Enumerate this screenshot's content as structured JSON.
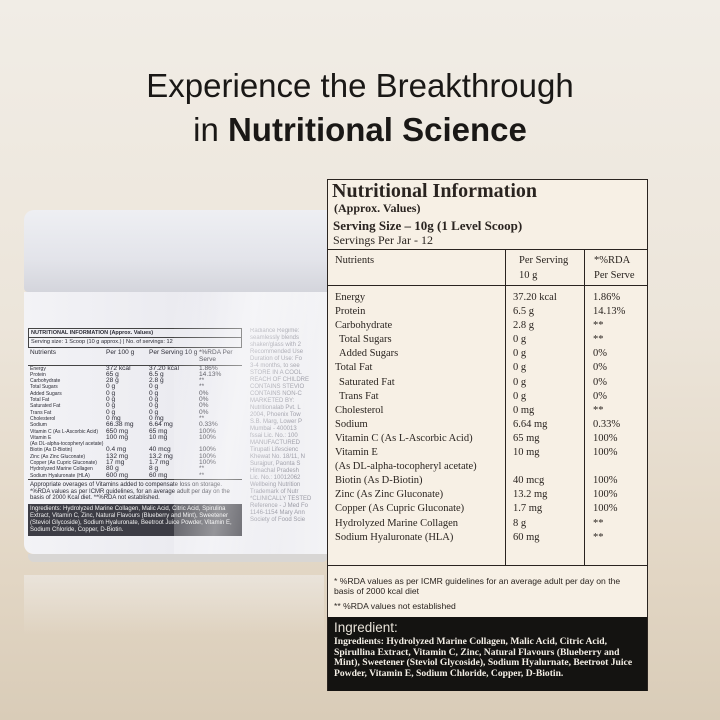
{
  "headline": {
    "line1": "Experience the Breakthrough",
    "line2_prefix": "in ",
    "line2_bold": "Nutritional Science"
  },
  "jar_label": {
    "title": "NUTRITIONAL INFORMATION (Approx. Values)",
    "subtitle": "Serving size: 1 Scoop (10 g approx.) | No. of servings: 12",
    "headers": [
      "Nutrients",
      "Per 100 g",
      "Per Serving 10 g",
      "*%RDA Per Serve"
    ],
    "rows": [
      [
        "Energy",
        "372 kcal",
        "37.20 kcal",
        "1.86%"
      ],
      [
        "Protein",
        "65 g",
        "6.5 g",
        "14.13%"
      ],
      [
        "Carbohydrate",
        "28 g",
        "2.8 g",
        "**"
      ],
      [
        "Total Sugars",
        "0 g",
        "0 g",
        "**"
      ],
      [
        "Added Sugars",
        "0 g",
        "0 g",
        "0%"
      ],
      [
        "Total Fat",
        "0 g",
        "0 g",
        "0%"
      ],
      [
        "Saturated Fat",
        "0 g",
        "0 g",
        "0%"
      ],
      [
        "Trans Fat",
        "0 g",
        "0 g",
        "0%"
      ],
      [
        "Cholesterol",
        "0 mg",
        "0 mg",
        "**"
      ],
      [
        "Sodium",
        "66.38 mg",
        "6.64 mg",
        "0.33%"
      ],
      [
        "Vitamin C (As L-Ascorbic Acid)",
        "650 mg",
        "65 mg",
        "100%"
      ],
      [
        "Vitamin E",
        "100 mg",
        "10 mg",
        "100%"
      ],
      [
        "(As DL-alpha-tocopheryl acetate)",
        "",
        "",
        ""
      ],
      [
        "Biotin (As D-Biotin)",
        "0.4 mg",
        "40 mcg",
        "100%"
      ],
      [
        "Zinc (As Zinc Gluconate)",
        "132 mg",
        "13.2 mg",
        "100%"
      ],
      [
        "Copper (As Cupric Gluconate)",
        "17 mg",
        "1.7 mg",
        "100%"
      ],
      [
        "Hydrolyzed Marine Collagen",
        "80 g",
        "8 g",
        "**"
      ],
      [
        "Sodium Hyaluronate (HLA)",
        "600 mg",
        "60 mg",
        "**"
      ]
    ],
    "note": "Appropriate overages of Vitamins added to compensate loss on storage. *%RDA values as per ICMR guidelines, for an average adult per day on the basis of 2000 Kcal diet. **%RDA not established.",
    "ingredients": "Ingredients: Hydrolyzed Marine Collagen, Malic Acid, Citric Acid, Spirulina Extract, Vitamin C, Zinc, Natural Flavours (Blueberry and Mint), Sweetener (Steviol Glycoside), Sodium Hyaluronate, Beetroot Juice Powder, Vitamin E, Sodium Chloride, Copper, D-Biotin.",
    "side_lines": [
      "Radiance Regime:",
      "seamlessly blends",
      "shaker/glass with 2",
      "Recommended Use",
      "Duration of Use: Fo",
      "3-4 months, to see",
      "STORE IN A COOL",
      "REACH OF CHILDRE",
      "CONTAINS STEVIO",
      "CONTAINS NON-C",
      "MARKETED BY:",
      "Nutritionalab Pvt. L",
      "2004, Phoenix Tow",
      "S.B. Marg, Lower P",
      "Mumbai - 400013",
      "fssai  Lic. No.: 100",
      "MANUFACTURED",
      "Tirupati Lifescienc",
      "Khewat No. 18/11, N",
      "Surajpur, Paonta S",
      "Himachal Pradesh",
      "Lic. No.: 10012062",
      "Wellbeing Nutrition",
      "Trademark of Nutr",
      "*CLINICALLY TESTED",
      "Reference - J Med Fo",
      "1146-1154 Mary Ann",
      "Society of Food Scie"
    ]
  },
  "panel": {
    "title": "Nutritional Information",
    "approx": "(Approx. Values)",
    "serving_size": "Serving Size – 10g (1 Level Scoop)",
    "servings_per_jar": "Servings Per Jar - 12",
    "col_nutrients": "Nutrients",
    "col_per_serving_1": "Per Serving",
    "col_per_serving_2": "10 g",
    "col_rda_1": "*%RDA",
    "col_rda_2": "Per Serve",
    "rows": [
      {
        "name": "Energy",
        "value": "37.20 kcal",
        "rda": "1.86%"
      },
      {
        "name": "Protein",
        "value": "6.5 g",
        "rda": "14.13%"
      },
      {
        "name": "Carbohydrate",
        "value": "2.8 g",
        "rda": "**"
      },
      {
        "name": "Total Sugars",
        "value": "0 g",
        "rda": "**",
        "indent": true
      },
      {
        "name": "Added Sugars",
        "value": "0 g",
        "rda": "0%",
        "indent": true
      },
      {
        "name": "Total Fat",
        "value": "0 g",
        "rda": "0%"
      },
      {
        "name": "Saturated Fat",
        "value": "0 g",
        "rda": "0%",
        "indent": true
      },
      {
        "name": "Trans Fat",
        "value": "0 g",
        "rda": "0%",
        "indent": true
      },
      {
        "name": "Cholesterol",
        "value": "0 mg",
        "rda": "**"
      },
      {
        "name": "Sodium",
        "value": "6.64 mg",
        "rda": "0.33%"
      },
      {
        "name": "Vitamin C (As L-Ascorbic Acid)",
        "value": "65 mg",
        "rda": "100%"
      },
      {
        "name": "Vitamin E",
        "value": "10 mg",
        "rda": "100%"
      },
      {
        "name": "(As DL-alpha-tocopheryl acetate)",
        "value": "",
        "rda": ""
      },
      {
        "name": "Biotin (As D-Biotin)",
        "value": "40 mcg",
        "rda": "100%"
      },
      {
        "name": "Zinc (As Zinc Gluconate)",
        "value": "13.2 mg",
        "rda": "100%"
      },
      {
        "name": "Copper (As Cupric Gluconate)",
        "value": "1.7 mg",
        "rda": "100%"
      },
      {
        "name": "Hydrolyzed Marine Collagen",
        "value": "8 g",
        "rda": "**"
      },
      {
        "name": "Sodium Hyaluronate (HLA)",
        "value": "60 mg",
        "rda": "**"
      }
    ],
    "footnote_1": "* %RDA values as per ICMR guidelines for an average adult per day on the basis of 2000 kcal diet",
    "footnote_2": "** %RDA values not established",
    "ingredient_heading": "Ingredient:",
    "ingredients": "Ingredients: Hydrolyzed Marine Collagen, Malic Acid, Citric Acid, Spirullina Extract, Vitamin C, Zinc, Natural Flavours (Blueberry and Mint), Sweetener (Steviol Glycoside), Sodium Hyalurnate, Beetroot Juice Powder, Vitamin E, Sodium Chloride, Copper, D-Biotin."
  }
}
